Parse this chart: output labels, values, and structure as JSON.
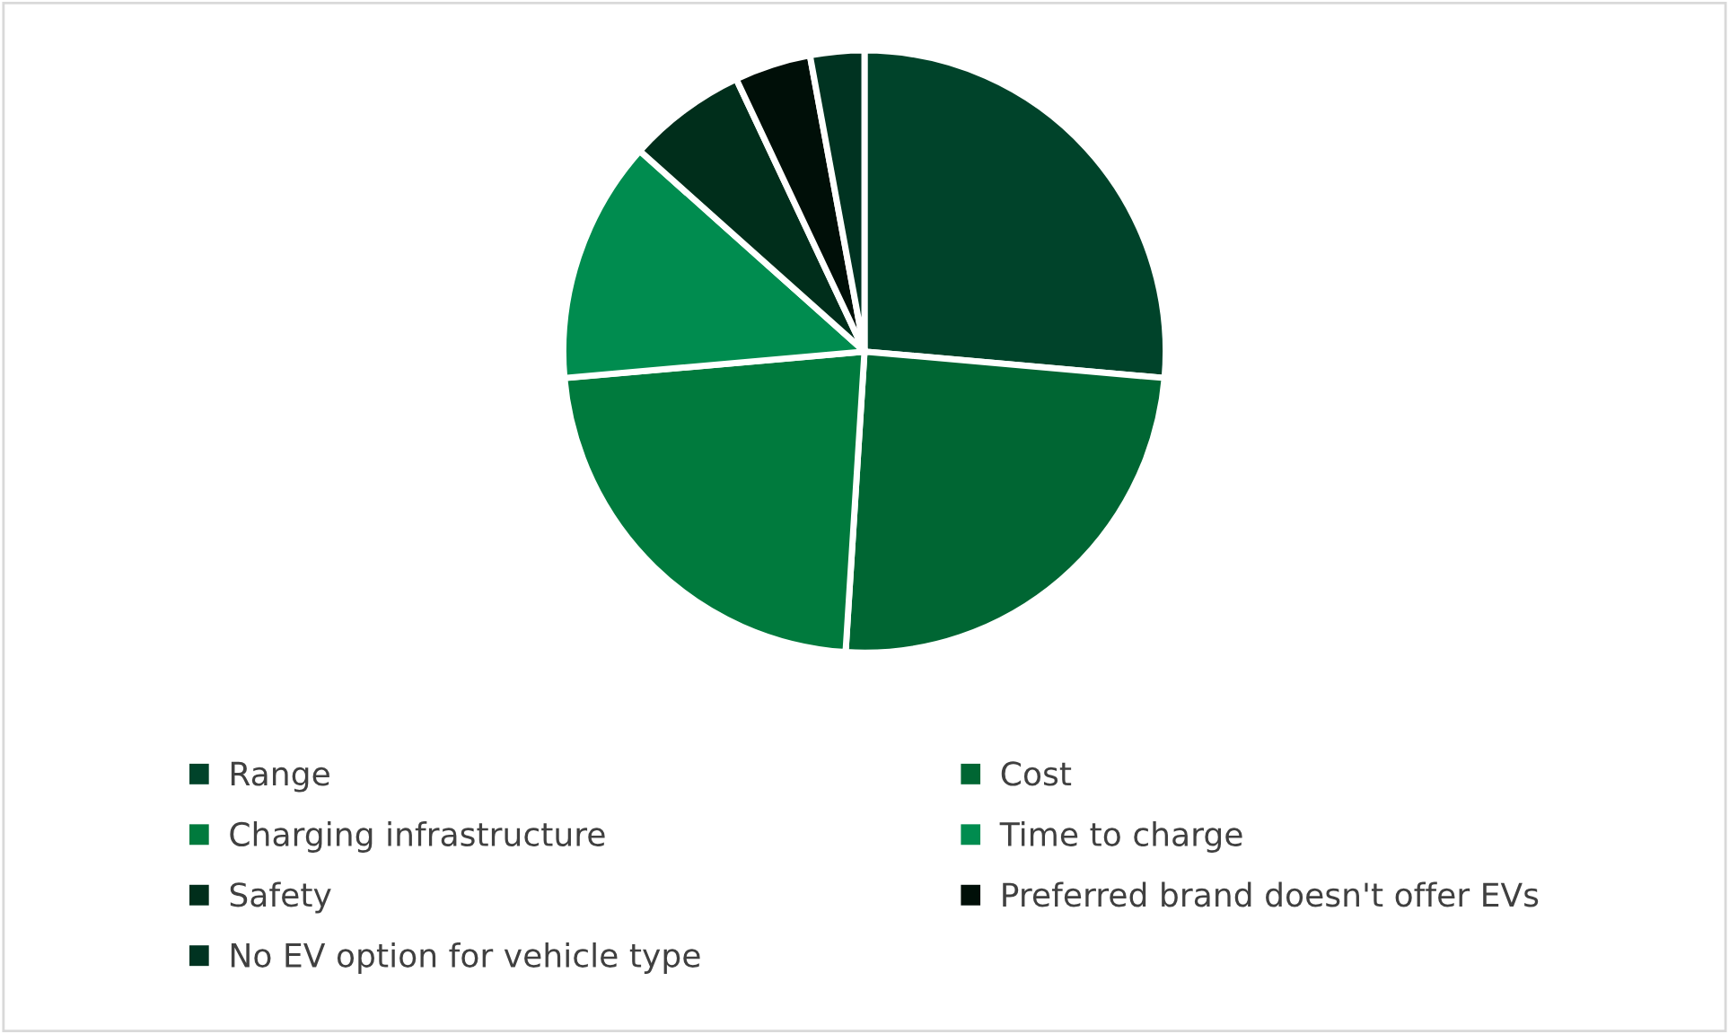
{
  "chart_data": {
    "type": "pie",
    "categories": [
      "Range",
      "Cost",
      "Charging infrastructure",
      "Time to charge",
      "Safety",
      "Preferred brand doesn't offer EVs",
      "No EV option for vehicle type"
    ],
    "values": [
      26.4,
      24.6,
      22.6,
      13.0,
      6.4,
      4.1,
      2.9
    ],
    "colors": [
      "#00432a",
      "#006633",
      "#007a3d",
      "#008c4f",
      "#002e1b",
      "#000f08",
      "#003321"
    ],
    "legend": "bottom"
  }
}
